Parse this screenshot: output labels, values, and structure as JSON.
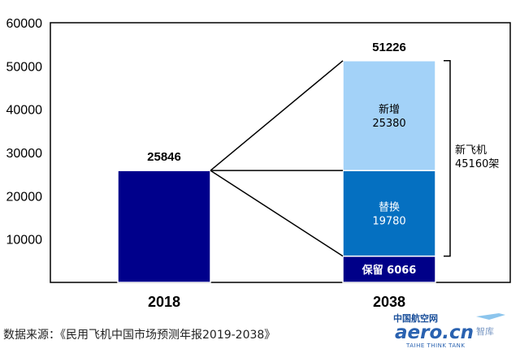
{
  "chart_data": {
    "type": "bar",
    "ylim": [
      0,
      60000
    ],
    "yticks": [
      10000,
      20000,
      30000,
      40000,
      50000,
      60000
    ],
    "categories": [
      "2018",
      "2038"
    ],
    "bars": [
      {
        "category": "2018",
        "total": 25846,
        "segments": [
          {
            "value": 25846,
            "label": "",
            "color": "#00008b"
          }
        ]
      },
      {
        "category": "2038",
        "total": 51226,
        "segments": [
          {
            "value": 6066,
            "label": "保留 6066",
            "color": "#000088"
          },
          {
            "value": 19780,
            "label": "替换\n19780",
            "color": "#0570c1"
          },
          {
            "value": 25380,
            "label": "新增\n25380",
            "color": "#a3d2f8"
          }
        ]
      }
    ],
    "bracket_label": "新飞机\n45160架"
  },
  "source": "数据来源：《民用飞机中国市场预测年报2019-2038》",
  "logo": {
    "cn": "中国航空网",
    "en": "aero.cn",
    "tagline": "TAIHE THINK TANK",
    "side": "智库"
  }
}
